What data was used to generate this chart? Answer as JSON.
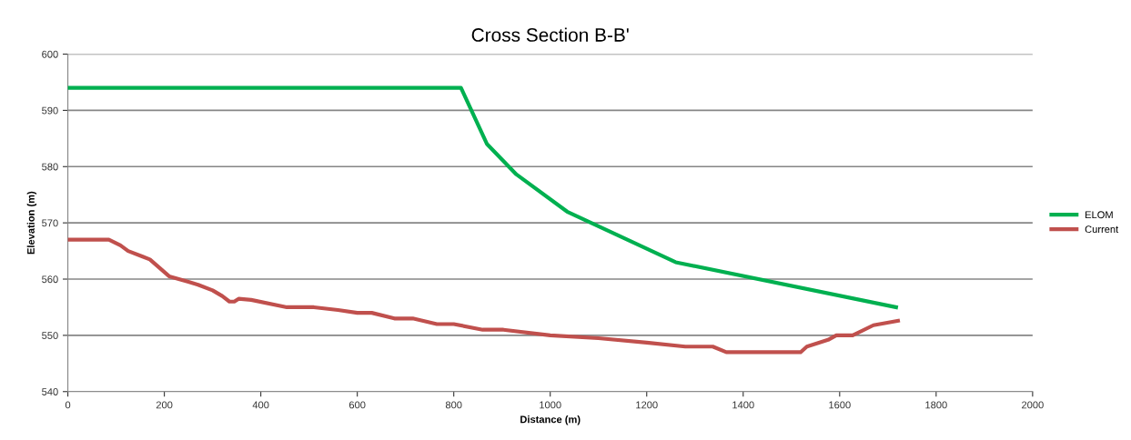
{
  "chart_data": {
    "type": "line",
    "title": "Cross Section B-B'",
    "xlabel": "Distance (m)",
    "ylabel": "Elevation (m)",
    "xlim": [
      0,
      2000
    ],
    "xticks": [
      0,
      200,
      400,
      600,
      800,
      1000,
      1200,
      1400,
      1600,
      1800,
      2000
    ],
    "ylim": [
      540,
      600
    ],
    "yticks": [
      540,
      550,
      560,
      570,
      580,
      590,
      600
    ],
    "grid": "y",
    "legend": "right",
    "marker": "none",
    "line_style": "solid",
    "series": [
      {
        "name": "ELOM",
        "color": "#00b050",
        "x": [
          0,
          815,
          869,
          930,
          1035,
          1260,
          1717
        ],
        "values": [
          594,
          594,
          584,
          578.6,
          572,
          563,
          555
        ]
      },
      {
        "name": "Current",
        "color": "#c0504d",
        "x": [
          0,
          85,
          109,
          125,
          155,
          170,
          190,
          210,
          230,
          250,
          270,
          300,
          320,
          335,
          345,
          354,
          380,
          454,
          510,
          560,
          600,
          630,
          677,
          715,
          765,
          800,
          860,
          903,
          1000,
          1100,
          1200,
          1280,
          1337,
          1365,
          1519,
          1532,
          1576,
          1593,
          1627,
          1670,
          1721
        ],
        "values": [
          567,
          567,
          566,
          565,
          564,
          563.5,
          562,
          560.5,
          560,
          559.5,
          559,
          558,
          557,
          556,
          556,
          556.5,
          556.3,
          555,
          555,
          554.5,
          554,
          554,
          553,
          553,
          552,
          552,
          551,
          551,
          550,
          549.5,
          548.7,
          548,
          548,
          547,
          547,
          548,
          549.2,
          550,
          550,
          551.8,
          552.6
        ]
      }
    ]
  }
}
